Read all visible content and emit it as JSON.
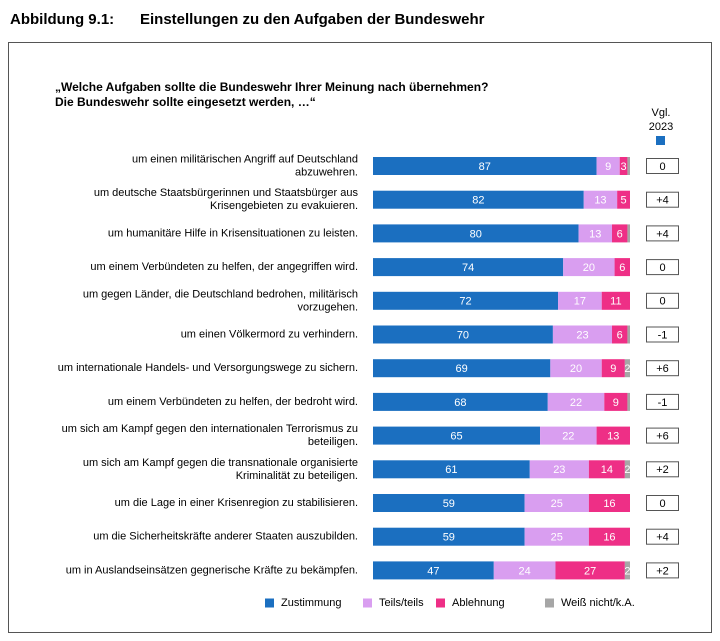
{
  "chart_data": {
    "type": "stacked-bar",
    "figure_label": "Abbildung 9.1:",
    "title": "Einstellungen zu den Aufgaben der Bundeswehr",
    "subtitle": [
      "„Welche Aufgaben sollte die Bundeswehr Ihrer Meinung nach übernehmen?",
      "Die Bundeswehr sollte eingesetzt werden, …“"
    ],
    "categories": [
      "um einen militärischen Angriff auf Deutschland\nabzuwehren.",
      "um deutsche Staatsbürgerinnen und Staatsbürger aus\nKrisengebieten zu evakuieren.",
      "um humanitäre Hilfe in Krisensituationen zu leisten.",
      "um einem Verbündeten zu helfen, der angegriffen wird.",
      "um gegen Länder, die Deutschland bedrohen, militärisch\nvorzugehen.",
      "um einen Völkermord zu verhindern.",
      "um internationale Handels- und Versorgungswege zu sichern.",
      "um einem Verbündeten zu helfen, der bedroht wird.",
      "um sich am Kampf gegen den internationalen Terrorismus zu\nbeteiligen.",
      "um sich am Kampf gegen die transnationale organisierte\nKriminalität zu beteiligen.",
      "um die Lage in einer Krisenregion zu stabilisieren.",
      "um die Sicherheitskräfte anderer Staaten auszubilden.",
      "um in Auslandseinsätzen gegnerische Kräfte zu bekämpfen."
    ],
    "series": [
      {
        "name": "Zustimmung",
        "color": "#1b6fc0",
        "values": [
          87,
          82,
          80,
          74,
          72,
          70,
          69,
          68,
          65,
          61,
          59,
          59,
          47
        ]
      },
      {
        "name": "Teils/teils",
        "color": "#d99ef0",
        "values": [
          9,
          13,
          13,
          20,
          17,
          23,
          20,
          22,
          22,
          23,
          25,
          25,
          24
        ]
      },
      {
        "name": "Ablehnung",
        "color": "#ee2f86",
        "values": [
          3,
          5,
          6,
          6,
          11,
          6,
          9,
          9,
          13,
          14,
          16,
          16,
          27
        ]
      },
      {
        "name": "Weiß nicht/k.A.",
        "color": "#a6a6a6",
        "values": [
          1,
          0,
          1,
          0,
          0,
          1,
          2,
          1,
          0,
          2,
          0,
          0,
          2
        ]
      }
    ],
    "xlim": [
      0,
      100
    ],
    "comparison": {
      "header": [
        "Vgl.",
        "2023"
      ],
      "color": "#1b6fc0",
      "values": [
        0,
        4,
        4,
        0,
        0,
        -1,
        6,
        -1,
        6,
        2,
        0,
        4,
        2
      ],
      "value_labels": [
        "0",
        "+4",
        "+4",
        "0",
        "0",
        "-1",
        "+6",
        "-1",
        "+6",
        "+2",
        "0",
        "+4",
        "+2"
      ]
    },
    "legend": "bottom"
  }
}
